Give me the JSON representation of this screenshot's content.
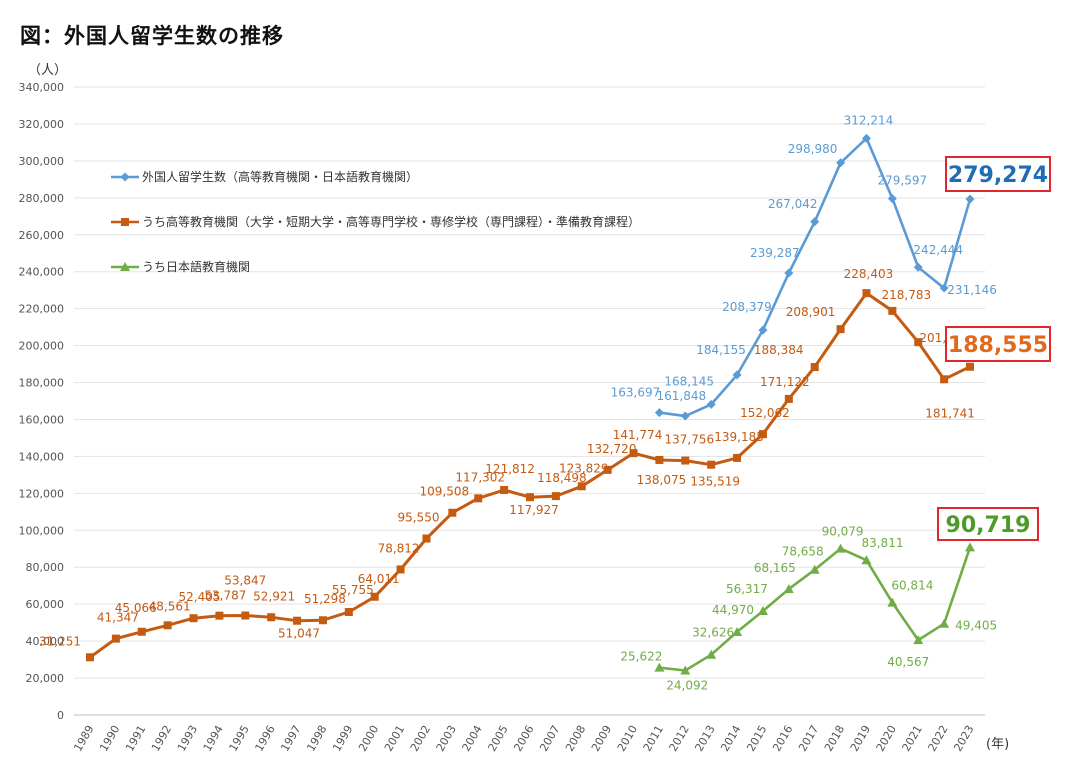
{
  "title": "図：外国人留学生数の推移",
  "chart_data": {
    "type": "line",
    "title": "図：外国人留学生数の推移",
    "ylabel": "（人）",
    "xlabel": "(年)",
    "ylim": [
      0,
      340000
    ],
    "y_ticks": [
      "0",
      "20,000",
      "40,000",
      "60,000",
      "80,000",
      "100,000",
      "120,000",
      "140,000",
      "160,000",
      "180,000",
      "200,000",
      "220,000",
      "240,000",
      "260,000",
      "280,000",
      "300,000",
      "320,000",
      "340,000"
    ],
    "x": [
      "1989",
      "1990",
      "1991",
      "1992",
      "1993",
      "1994",
      "1995",
      "1996",
      "1997",
      "1998",
      "1999",
      "2000",
      "2001",
      "2002",
      "2003",
      "2004",
      "2005",
      "2006",
      "2007",
      "2008",
      "2009",
      "2010",
      "2011",
      "2012",
      "2013",
      "2014",
      "2015",
      "2016",
      "2017",
      "2018",
      "2019",
      "2020",
      "2021",
      "2022",
      "2023"
    ],
    "grid": "horizontal",
    "legend_position": "top-left",
    "series": [
      {
        "name": "外国人留学生数（高等教育機関・日本語教育機関）",
        "color": "#5b9bd5",
        "marker": "diamond",
        "values": [
          null,
          null,
          null,
          null,
          null,
          null,
          null,
          null,
          null,
          null,
          null,
          null,
          null,
          null,
          null,
          null,
          null,
          null,
          null,
          null,
          null,
          null,
          163697,
          161848,
          168145,
          184155,
          208379,
          239287,
          267042,
          298980,
          312214,
          279597,
          242444,
          231146,
          279274
        ],
        "labels": [
          null,
          null,
          null,
          null,
          null,
          null,
          null,
          null,
          null,
          null,
          null,
          null,
          null,
          null,
          null,
          null,
          null,
          null,
          null,
          null,
          null,
          null,
          "163,697",
          "161,848",
          "168,145",
          "184,155",
          "208,379",
          "239,287",
          "267,042",
          "298,980",
          "312,214",
          "279,597",
          "242,444",
          "231,146",
          null
        ],
        "highlight": "279,274",
        "highlight_color": "#1f6db3"
      },
      {
        "name": "うち高等教育機関（大学・短期大学・高等専門学校・専修学校（専門課程）・準備教育課程）",
        "color": "#c55a11",
        "marker": "square",
        "values": [
          31251,
          41347,
          45066,
          48561,
          52405,
          53787,
          53847,
          52921,
          51047,
          51298,
          55755,
          64011,
          78812,
          95550,
          109508,
          117302,
          121812,
          117927,
          118498,
          123829,
          132720,
          141774,
          138075,
          137756,
          135519,
          139185,
          152062,
          171122,
          188384,
          208901,
          228403,
          218783,
          201877,
          181741,
          188555
        ],
        "labels": [
          "31,251",
          "41,347",
          "45,066",
          "48,561",
          "52,405",
          "53,787",
          "53,847",
          "52,921",
          "51,047",
          "51,298",
          "55,755",
          "64,011",
          "78,812",
          "95,550",
          "109,508",
          "117,302",
          "121,812",
          "117,927",
          "118,498",
          "123,829",
          "132,720",
          "141,774",
          "138,075",
          "137,756",
          "135,519",
          "139,185",
          "152,062",
          "171,122",
          "188,384",
          "208,901",
          "228,403",
          "218,783",
          "201,877",
          "181,741",
          null
        ],
        "highlight": "188,555",
        "highlight_color": "#e06a1b"
      },
      {
        "name": "うち日本語教育機関",
        "color": "#70ad47",
        "marker": "triangle",
        "values": [
          null,
          null,
          null,
          null,
          null,
          null,
          null,
          null,
          null,
          null,
          null,
          null,
          null,
          null,
          null,
          null,
          null,
          null,
          null,
          null,
          null,
          null,
          25622,
          24092,
          32626,
          44970,
          56317,
          68165,
          78658,
          90079,
          83811,
          60814,
          40567,
          49405,
          90719
        ],
        "labels": [
          null,
          null,
          null,
          null,
          null,
          null,
          null,
          null,
          null,
          null,
          null,
          null,
          null,
          null,
          null,
          null,
          null,
          null,
          null,
          null,
          null,
          null,
          "25,622",
          "24,092",
          "32,626",
          "44,970",
          "56,317",
          "68,165",
          "78,658",
          "90,079",
          "83,811",
          "60,814",
          "40,567",
          "49,405",
          null
        ],
        "highlight": "90,719",
        "highlight_color": "#4e9a2a"
      }
    ]
  }
}
